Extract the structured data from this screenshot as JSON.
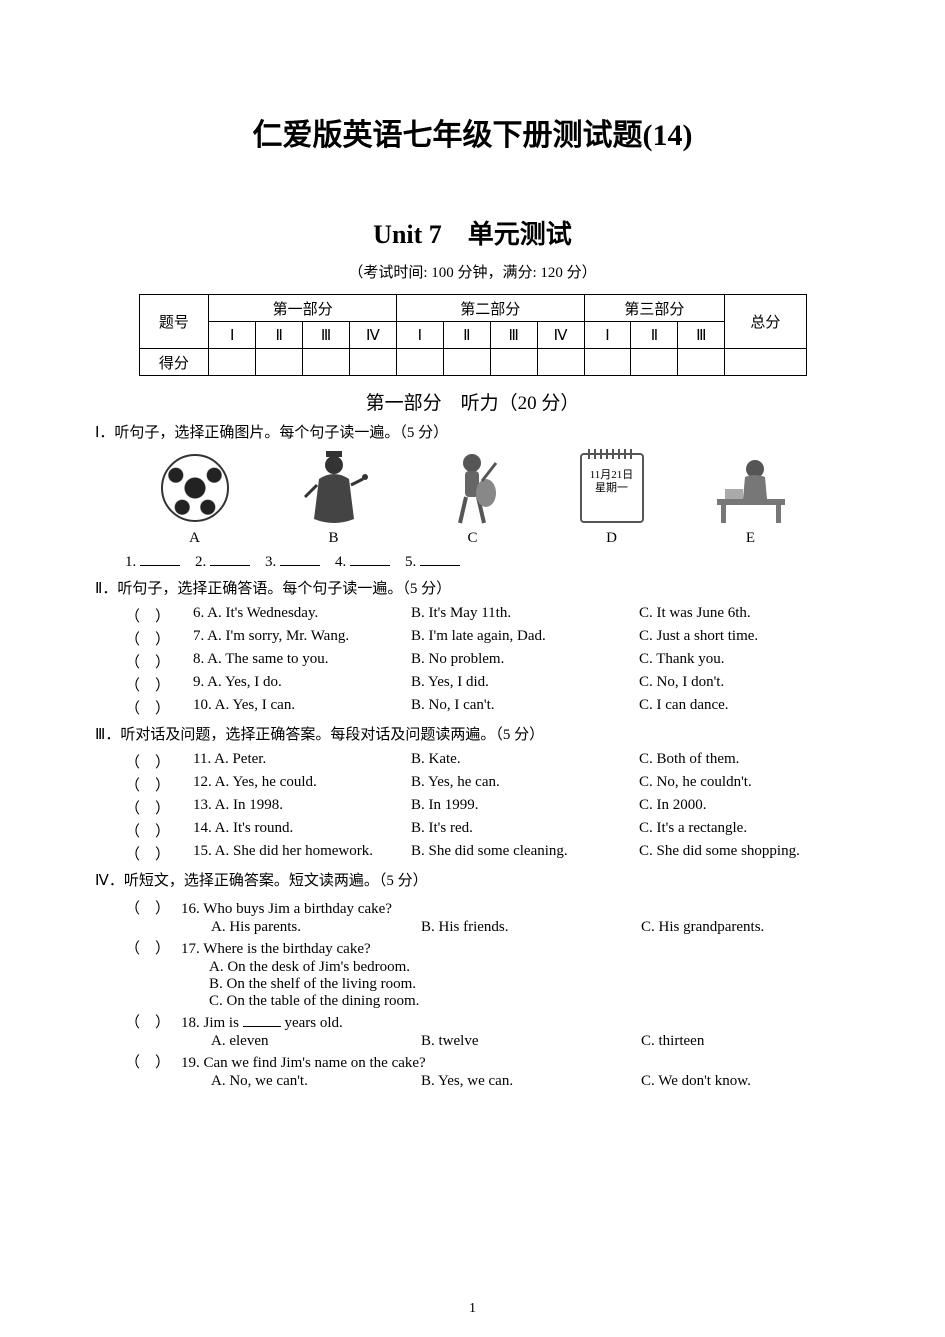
{
  "title": "仁爱版英语七年级下册测试题(14)",
  "subtitle_unit_en": "Unit 7",
  "subtitle_unit_cn": "单元测试",
  "exam_info": "（考试时间: 100 分钟，满分: 120 分）",
  "score_table": {
    "row1_label": "题号",
    "part1": "第一部分",
    "part2": "第二部分",
    "part3": "第三部分",
    "total": "总分",
    "cols_p1": [
      "Ⅰ",
      "Ⅱ",
      "Ⅲ",
      "Ⅳ"
    ],
    "cols_p2": [
      "Ⅰ",
      "Ⅱ",
      "Ⅲ",
      "Ⅳ"
    ],
    "cols_p3": [
      "Ⅰ",
      "Ⅱ",
      "Ⅲ"
    ],
    "row2_label": "得分"
  },
  "part_heading": "第一部分　听力（20 分）",
  "sec1": {
    "heading": "Ⅰ．听句子，选择正确图片。每个句子读一遍。（5 分）",
    "images": [
      {
        "label": "A",
        "name": "soccer-ball-icon"
      },
      {
        "label": "B",
        "name": "magician-icon"
      },
      {
        "label": "C",
        "name": "boy-guitar-icon"
      },
      {
        "label": "D",
        "name": "calendar-icon",
        "cal_date": "11月21日",
        "cal_day": "星期一"
      },
      {
        "label": "E",
        "name": "girl-desk-icon"
      }
    ],
    "blanks": [
      "1.",
      "2.",
      "3.",
      "4.",
      "5."
    ]
  },
  "sec2": {
    "heading": "Ⅱ．听句子，选择正确答语。每个句子读一遍。（5 分）",
    "questions": [
      {
        "n": "6",
        "a": "A. It's Wednesday.",
        "b": "B. It's May 11th.",
        "c": "C. It was June 6th."
      },
      {
        "n": "7",
        "a": "A. I'm sorry, Mr. Wang.",
        "b": "B. I'm late again, Dad.",
        "c": "C. Just a short time."
      },
      {
        "n": "8",
        "a": "A. The same to you.",
        "b": "B. No problem.",
        "c": "C. Thank you."
      },
      {
        "n": "9",
        "a": "A. Yes, I do.",
        "b": "B. Yes, I did.",
        "c": "C. No, I don't."
      },
      {
        "n": "10",
        "a": "A. Yes, I can.",
        "b": "B. No, I can't.",
        "c": "C. I can dance."
      }
    ]
  },
  "sec3": {
    "heading": "Ⅲ．听对话及问题，选择正确答案。每段对话及问题读两遍。（5 分）",
    "questions": [
      {
        "n": "11",
        "a": "A. Peter.",
        "b": "B. Kate.",
        "c": "C. Both of them."
      },
      {
        "n": "12",
        "a": "A. Yes, he could.",
        "b": "B. Yes, he can.",
        "c": "C. No, he couldn't."
      },
      {
        "n": "13",
        "a": "A. In 1998.",
        "b": "B. In 1999.",
        "c": "C. In 2000."
      },
      {
        "n": "14",
        "a": "A. It's round.",
        "b": "B. It's red.",
        "c": "C. It's a rectangle."
      },
      {
        "n": "15",
        "a": "A. She did her homework.",
        "b": "B. She did some cleaning.",
        "c": "C. She did some shopping."
      }
    ]
  },
  "sec4": {
    "heading": "Ⅳ．听短文，选择正确答案。短文读两遍。（5 分）",
    "questions": [
      {
        "n": "16",
        "stem": "Who buys Jim a birthday cake?",
        "opts": {
          "a": "A. His parents.",
          "b": "B. His friends.",
          "c": "C. His grandparents."
        }
      },
      {
        "n": "17",
        "stem": "Where is the birthday cake?",
        "lines": [
          "A. On the desk of Jim's bedroom.",
          "B. On the shelf of the living room.",
          "C. On the table of the dining room."
        ]
      },
      {
        "n": "18",
        "stem_pre": "Jim is ",
        "stem_post": " years old.",
        "opts": {
          "a": "A. eleven",
          "b": "B. twelve",
          "c": "C. thirteen"
        }
      },
      {
        "n": "19",
        "stem": "Can we find Jim's name on the cake?",
        "opts": {
          "a": "A. No, we can't.",
          "b": "B. Yes, we can.",
          "c": "C. We don't know."
        }
      }
    ]
  },
  "page_number": "1",
  "colors": {
    "text": "#000000",
    "border": "#000000",
    "background": "#ffffff"
  }
}
